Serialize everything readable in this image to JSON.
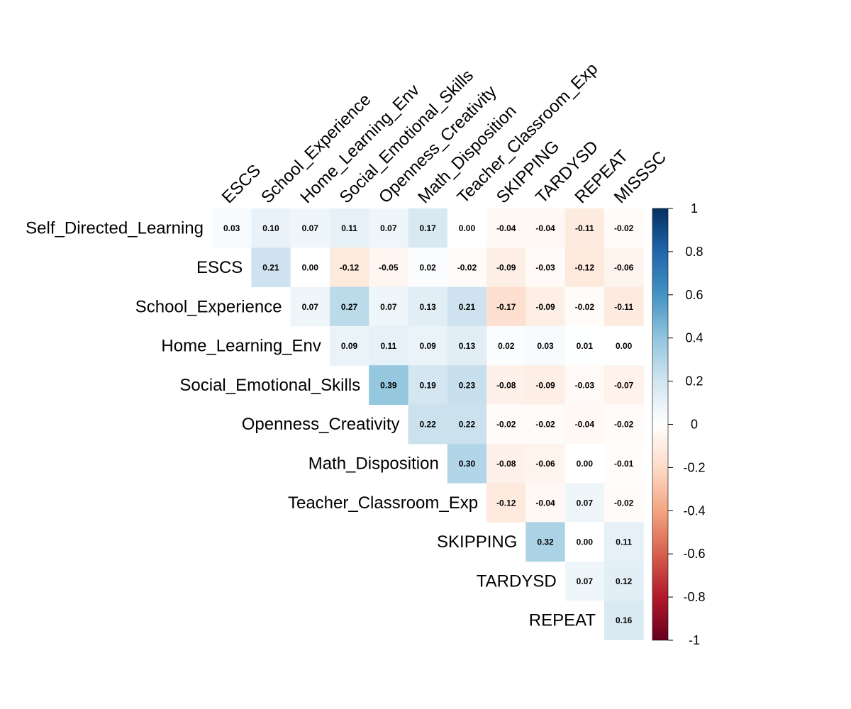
{
  "chart_data": {
    "type": "heatmap",
    "subtype": "correlation-upper-triangle",
    "rows": [
      "Self_Directed_Learning",
      "ESCS",
      "School_Experience",
      "Home_Learning_Env",
      "Social_Emotional_Skills",
      "Openness_Creativity",
      "Math_Disposition",
      "Teacher_Classroom_Exp",
      "SKIPPING",
      "TARDYSD",
      "REPEAT"
    ],
    "columns": [
      "ESCS",
      "School_Experience",
      "Home_Learning_Env",
      "Social_Emotional_Skills",
      "Openness_Creativity",
      "Math_Disposition",
      "Teacher_Classroom_Exp",
      "SKIPPING",
      "TARDYSD",
      "REPEAT",
      "MISSSC"
    ],
    "values": [
      [
        "0.03",
        "0.10",
        "0.07",
        "0.11",
        "0.07",
        "0.17",
        "0.00",
        "-0.04",
        "-0.04",
        "-0.11",
        "-0.02"
      ],
      [
        "0.21",
        "0.00",
        "-0.12",
        "-0.05",
        "0.02",
        "-0.02",
        "-0.09",
        "-0.03",
        "-0.12",
        "-0.06"
      ],
      [
        "0.07",
        "0.27",
        "0.07",
        "0.13",
        "0.21",
        "-0.17",
        "-0.09",
        "-0.02",
        "-0.11"
      ],
      [
        "0.09",
        "0.11",
        "0.09",
        "0.13",
        "0.02",
        "0.03",
        "0.01",
        "0.00"
      ],
      [
        "0.39",
        "0.19",
        "0.23",
        "-0.08",
        "-0.09",
        "-0.03",
        "-0.07"
      ],
      [
        "0.22",
        "0.22",
        "-0.02",
        "-0.02",
        "-0.04",
        "-0.02"
      ],
      [
        "0.30",
        "-0.08",
        "-0.06",
        "0.00",
        "-0.01"
      ],
      [
        "-0.12",
        "-0.04",
        "0.07",
        "-0.02"
      ],
      [
        "0.32",
        "0.00",
        "0.11"
      ],
      [
        "0.07",
        "0.12"
      ],
      [
        "0.16"
      ]
    ],
    "color_scale": {
      "min": -1,
      "max": 1,
      "ticks": [
        "1",
        "0.8",
        "0.6",
        "0.4",
        "0.2",
        "0",
        "-0.2",
        "-0.4",
        "-0.6",
        "-0.8",
        "-1"
      ],
      "low_color": "#67001f",
      "mid_color": "#ffffff",
      "high_color": "#053061"
    },
    "legend": "right"
  }
}
